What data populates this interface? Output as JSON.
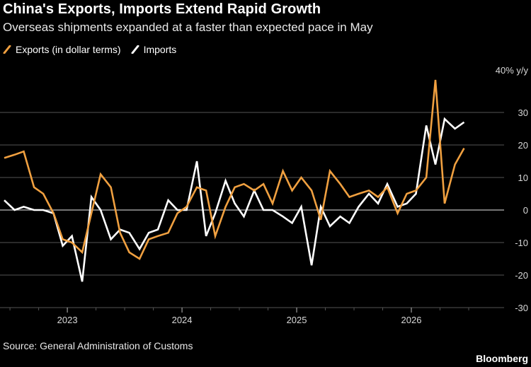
{
  "title": "China's Exports, Imports Extend Rapid Growth",
  "subtitle": "Overseas shipments expanded at a faster than expected pace in May",
  "source": "Source: General Administration of Customs",
  "brand": "Bloomberg",
  "colors": {
    "exports": "#f0a040",
    "imports": "#ffffff",
    "grid": "#555555",
    "zero": "#bbbbbb"
  },
  "chart_data": {
    "type": "line",
    "unit_label": "40% y/y",
    "ylim": [
      -30,
      40
    ],
    "yticks": [
      -30,
      -20,
      -10,
      0,
      10,
      20,
      30
    ],
    "x_range": [
      2022.45,
      2026.5
    ],
    "xticks": [
      {
        "value": 2023.0,
        "label": "2023"
      },
      {
        "value": 2024.0,
        "label": "2024"
      },
      {
        "value": 2025.0,
        "label": "2025"
      },
      {
        "value": 2026.0,
        "label": "2026"
      }
    ],
    "legend_position": "top-left",
    "series": [
      {
        "name": "Exports (in dollar terms)",
        "key": "exports",
        "points": [
          [
            2022.45,
            16
          ],
          [
            2022.54,
            17
          ],
          [
            2022.62,
            18
          ],
          [
            2022.71,
            7
          ],
          [
            2022.79,
            5
          ],
          [
            2022.88,
            -1
          ],
          [
            2022.96,
            -9
          ],
          [
            2023.04,
            -10
          ],
          [
            2023.13,
            -13
          ],
          [
            2023.21,
            -1
          ],
          [
            2023.29,
            11
          ],
          [
            2023.38,
            7
          ],
          [
            2023.46,
            -7
          ],
          [
            2023.54,
            -13
          ],
          [
            2023.63,
            -15
          ],
          [
            2023.71,
            -9
          ],
          [
            2023.79,
            -8
          ],
          [
            2023.88,
            -7
          ],
          [
            2023.96,
            -1
          ],
          [
            2024.04,
            1
          ],
          [
            2024.13,
            7
          ],
          [
            2024.21,
            6
          ],
          [
            2024.29,
            -8
          ],
          [
            2024.38,
            1
          ],
          [
            2024.46,
            7
          ],
          [
            2024.54,
            8
          ],
          [
            2024.63,
            6
          ],
          [
            2024.71,
            8
          ],
          [
            2024.79,
            2
          ],
          [
            2024.88,
            12
          ],
          [
            2024.96,
            6
          ],
          [
            2025.04,
            10
          ],
          [
            2025.13,
            6
          ],
          [
            2025.21,
            -3
          ],
          [
            2025.29,
            12
          ],
          [
            2025.38,
            8
          ],
          [
            2025.46,
            4
          ],
          [
            2025.54,
            5
          ],
          [
            2025.63,
            6
          ],
          [
            2025.71,
            4
          ],
          [
            2025.79,
            7
          ],
          [
            2025.88,
            -1
          ],
          [
            2025.96,
            5
          ],
          [
            2026.04,
            6
          ],
          [
            2026.13,
            10
          ],
          [
            2026.21,
            40
          ],
          [
            2026.29,
            2
          ],
          [
            2026.38,
            14
          ],
          [
            2026.46,
            19
          ]
        ]
      },
      {
        "name": "Imports",
        "key": "imports",
        "points": [
          [
            2022.45,
            3
          ],
          [
            2022.54,
            0
          ],
          [
            2022.62,
            1
          ],
          [
            2022.71,
            0
          ],
          [
            2022.79,
            0
          ],
          [
            2022.88,
            -1
          ],
          [
            2022.96,
            -11
          ],
          [
            2023.04,
            -8
          ],
          [
            2023.13,
            -22
          ],
          [
            2023.21,
            4
          ],
          [
            2023.29,
            0
          ],
          [
            2023.38,
            -9
          ],
          [
            2023.46,
            -6
          ],
          [
            2023.54,
            -7
          ],
          [
            2023.63,
            -12
          ],
          [
            2023.71,
            -7
          ],
          [
            2023.79,
            -6
          ],
          [
            2023.88,
            3
          ],
          [
            2023.96,
            0
          ],
          [
            2024.04,
            0
          ],
          [
            2024.13,
            15
          ],
          [
            2024.21,
            -8
          ],
          [
            2024.29,
            -1
          ],
          [
            2024.38,
            9
          ],
          [
            2024.46,
            2
          ],
          [
            2024.54,
            -2
          ],
          [
            2024.63,
            6
          ],
          [
            2024.71,
            0
          ],
          [
            2024.79,
            0
          ],
          [
            2024.88,
            -2
          ],
          [
            2024.96,
            -4
          ],
          [
            2025.04,
            1
          ],
          [
            2025.13,
            -17
          ],
          [
            2025.21,
            1
          ],
          [
            2025.29,
            -5
          ],
          [
            2025.38,
            -2
          ],
          [
            2025.46,
            -4
          ],
          [
            2025.54,
            1
          ],
          [
            2025.63,
            5
          ],
          [
            2025.71,
            2
          ],
          [
            2025.79,
            8
          ],
          [
            2025.88,
            1
          ],
          [
            2025.96,
            2
          ],
          [
            2026.04,
            5
          ],
          [
            2026.13,
            26
          ],
          [
            2026.21,
            14
          ],
          [
            2026.29,
            28
          ],
          [
            2026.38,
            25
          ],
          [
            2026.46,
            27
          ]
        ]
      }
    ]
  }
}
